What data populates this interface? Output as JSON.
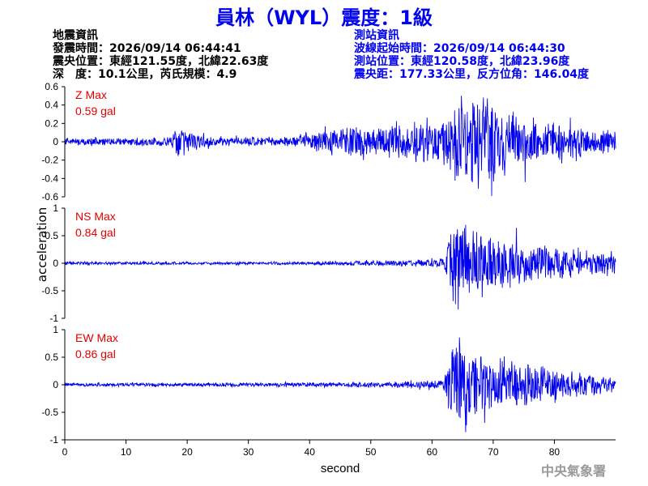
{
  "header": {
    "title": "員林（WYL）震度：1級"
  },
  "quake_info": {
    "heading": "地震資訊",
    "time": "發震時間：2026/09/14 06:44:41",
    "epicenter": "震央位置：東經121.55度，北緯22.63度",
    "depth": "深　度：10.1公里，芮氏規模：4.9"
  },
  "station_info": {
    "heading": "測站資訊",
    "start_time": "波線起始時間：2026/09/14 06:44:30",
    "location": "測站位置：東經120.58度，北緯23.96度",
    "distance": "震央距：177.33公里，反方位角：146.04度"
  },
  "footer": {
    "agency": "中央氣象署"
  },
  "colors": {
    "trace": "#0000ee",
    "label": "#e00000",
    "title": "#0000ee"
  },
  "chart_data": {
    "type": "line",
    "xlabel": "second",
    "ylabel": "acceleration",
    "xlim": [
      0,
      90
    ],
    "x_ticks": [
      "0",
      "10",
      "20",
      "30",
      "40",
      "50",
      "60",
      "70",
      "80"
    ],
    "grid": false,
    "panels": [
      {
        "component": "Z",
        "label": "Z Max",
        "max_text": "0.59 gal",
        "max_value": 0.59,
        "ylim": [
          -0.6,
          0.6
        ],
        "y_ticks": [
          "0.6",
          "0.4",
          "0.2",
          "0",
          "-0.2",
          "-0.4",
          "-0.6"
        ],
        "envelope": [
          {
            "t": 0,
            "amp": 0.04
          },
          {
            "t": 17,
            "amp": 0.05
          },
          {
            "t": 19,
            "amp": 0.18
          },
          {
            "t": 21,
            "amp": 0.1
          },
          {
            "t": 24,
            "amp": 0.05
          },
          {
            "t": 38,
            "amp": 0.06
          },
          {
            "t": 43,
            "amp": 0.17
          },
          {
            "t": 55,
            "amp": 0.2
          },
          {
            "t": 62,
            "amp": 0.32
          },
          {
            "t": 64,
            "amp": 0.5
          },
          {
            "t": 67,
            "amp": 0.59
          },
          {
            "t": 72,
            "amp": 0.42
          },
          {
            "t": 78,
            "amp": 0.26
          },
          {
            "t": 85,
            "amp": 0.17
          },
          {
            "t": 90,
            "amp": 0.14
          }
        ]
      },
      {
        "component": "NS",
        "label": "NS Max",
        "max_text": "0.84 gal",
        "max_value": 0.84,
        "ylim": [
          -1,
          1
        ],
        "y_ticks": [
          "1",
          "0.5",
          "0",
          "-0.5",
          "-1"
        ],
        "envelope": [
          {
            "t": 0,
            "amp": 0.03
          },
          {
            "t": 40,
            "amp": 0.03
          },
          {
            "t": 55,
            "amp": 0.06
          },
          {
            "t": 62,
            "amp": 0.1
          },
          {
            "t": 63,
            "amp": 0.7
          },
          {
            "t": 64,
            "amp": 0.84
          },
          {
            "t": 68,
            "amp": 0.55
          },
          {
            "t": 75,
            "amp": 0.4
          },
          {
            "t": 80,
            "amp": 0.28
          },
          {
            "t": 90,
            "amp": 0.25
          }
        ]
      },
      {
        "component": "EW",
        "label": "EW Max",
        "max_text": "0.86 gal",
        "max_value": 0.86,
        "ylim": [
          -1,
          1
        ],
        "y_ticks": [
          "1",
          "0.5",
          "0",
          "-0.5",
          "-1"
        ],
        "envelope": [
          {
            "t": 0,
            "amp": 0.03
          },
          {
            "t": 17,
            "amp": 0.04
          },
          {
            "t": 40,
            "amp": 0.04
          },
          {
            "t": 55,
            "amp": 0.06
          },
          {
            "t": 62,
            "amp": 0.1
          },
          {
            "t": 63,
            "amp": 0.8
          },
          {
            "t": 64,
            "amp": 0.86
          },
          {
            "t": 68,
            "amp": 0.6
          },
          {
            "t": 75,
            "amp": 0.45
          },
          {
            "t": 80,
            "amp": 0.3
          },
          {
            "t": 90,
            "amp": 0.15
          }
        ]
      }
    ]
  }
}
